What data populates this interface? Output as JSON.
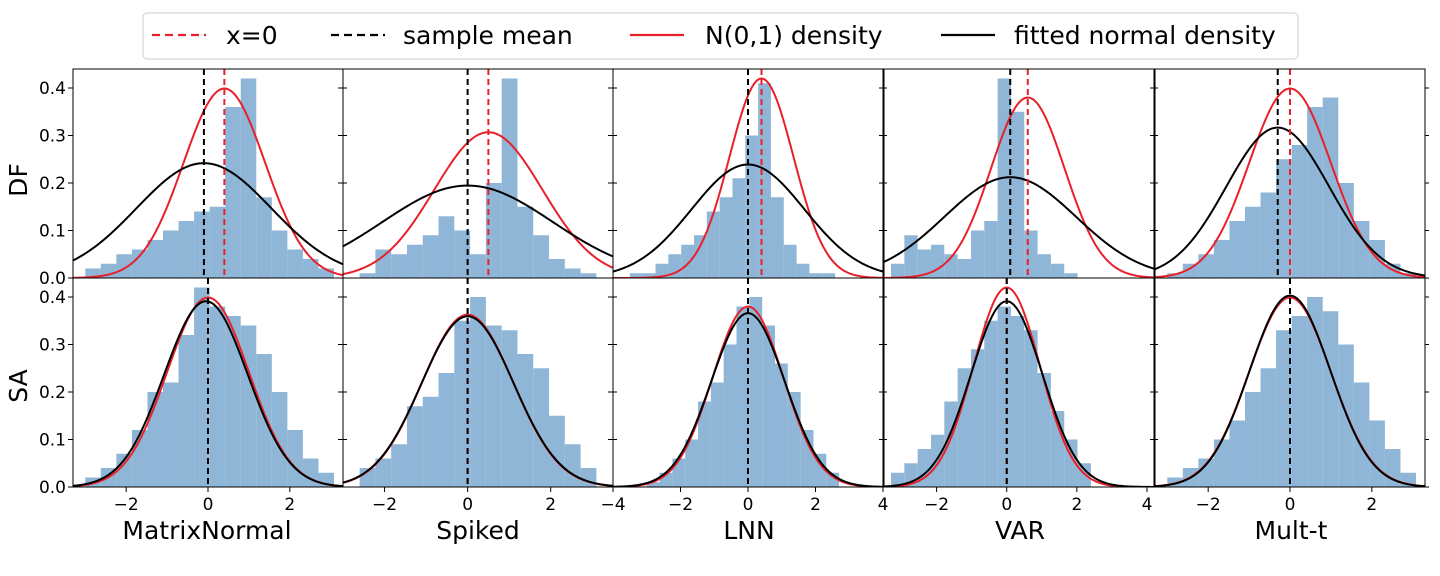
{
  "legend": {
    "entries": [
      {
        "label": "x=0",
        "style": "dashed",
        "color": "#e8202a"
      },
      {
        "label": "sample mean",
        "style": "dashed",
        "color": "#000000"
      },
      {
        "label": "N(0,1) density",
        "style": "solid",
        "color": "#e8202a"
      },
      {
        "label": "fitted normal density",
        "style": "solid",
        "color": "#000000"
      }
    ],
    "placement": "top-center"
  },
  "colors": {
    "hist": "#8fb6d6",
    "red": "#e8202a",
    "black": "#000000"
  },
  "chart_data": {
    "type": "histogram-grid",
    "row_labels": [
      "DF",
      "SA"
    ],
    "col_labels": [
      "MatrixNormal",
      "Spiked",
      "LNN",
      "VAR",
      "Mult-t"
    ],
    "ylim": [
      0,
      0.44
    ],
    "yticks": [
      "0.0",
      "0.1",
      "0.2",
      "0.3",
      "0.4"
    ],
    "ytick_values": [
      0,
      0.1,
      0.2,
      0.3,
      0.4
    ],
    "columns": [
      {
        "xlim": [
          -3.3,
          3.3
        ],
        "xticks": [
          -2,
          0,
          2
        ],
        "xtick_labels": [
          "−2",
          "0",
          "2"
        ]
      },
      {
        "xlim": [
          -3.0,
          3.5
        ],
        "xticks": [
          -2,
          0,
          2
        ],
        "xtick_labels": [
          "−2",
          "0",
          "2"
        ]
      },
      {
        "xlim": [
          -4.0,
          4.0
        ],
        "xticks": [
          -4,
          -2,
          0,
          2,
          4
        ],
        "xtick_labels": [
          "−4",
          "−2",
          "0",
          "2",
          "4"
        ]
      },
      {
        "xlim": [
          -3.5,
          4.2
        ],
        "xticks": [
          -2,
          0,
          2,
          4
        ],
        "xtick_labels": [
          "−2",
          "0",
          "2",
          "4"
        ]
      },
      {
        "xlim": [
          -3.3,
          3.3
        ],
        "xticks": [
          -2,
          0,
          2
        ],
        "xtick_labels": [
          "−2",
          "0",
          "2"
        ]
      }
    ],
    "panels": [
      {
        "row": "DF",
        "col": "MatrixNormal",
        "hist_start": -3.0,
        "bin_width": 0.38,
        "values": [
          0.02,
          0.03,
          0.05,
          0.06,
          0.08,
          0.1,
          0.12,
          0.14,
          0.15,
          0.36,
          0.42,
          0.17,
          0.1,
          0.06,
          0.04,
          0.02
        ],
        "sample_mean": -0.1,
        "ref_center": 0.4,
        "ref_sd": 1.0,
        "fit_mean": -0.1,
        "fit_sd": 1.65
      },
      {
        "row": "DF",
        "col": "Spiked",
        "hist_start": -2.6,
        "bin_width": 0.38,
        "values": [
          0.01,
          0.06,
          0.05,
          0.07,
          0.09,
          0.13,
          0.1,
          0.05,
          0.2,
          0.42,
          0.15,
          0.09,
          0.04,
          0.02,
          0.01
        ],
        "sample_mean": 0.0,
        "ref_center": 0.5,
        "ref_sd": 1.3,
        "fit_mean": 0.0,
        "fit_sd": 2.05
      },
      {
        "row": "DF",
        "col": "LNN",
        "hist_start": -3.5,
        "bin_width": 0.38,
        "values": [
          0.01,
          0.01,
          0.03,
          0.05,
          0.07,
          0.09,
          0.14,
          0.17,
          0.21,
          0.3,
          0.41,
          0.17,
          0.07,
          0.03,
          0.01,
          0.01
        ],
        "sample_mean": 0.0,
        "ref_center": 0.4,
        "ref_sd": 0.95,
        "fit_mean": 0.0,
        "fit_sd": 1.67
      },
      {
        "row": "DF",
        "col": "VAR",
        "hist_start": -3.3,
        "bin_width": 0.38,
        "values": [
          0.03,
          0.09,
          0.06,
          0.07,
          0.05,
          0.04,
          0.1,
          0.12,
          0.42,
          0.35,
          0.1,
          0.05,
          0.03,
          0.01
        ],
        "sample_mean": 0.1,
        "ref_center": 0.6,
        "ref_sd": 1.05,
        "fit_mean": 0.1,
        "fit_sd": 1.88
      },
      {
        "row": "DF",
        "col": "Mult-t",
        "hist_start": -3.0,
        "bin_width": 0.38,
        "values": [
          0.01,
          0.03,
          0.05,
          0.08,
          0.12,
          0.15,
          0.18,
          0.25,
          0.28,
          0.36,
          0.38,
          0.2,
          0.12,
          0.08,
          0.03,
          0.01
        ],
        "sample_mean": -0.3,
        "ref_center": 0.0,
        "ref_sd": 1.0,
        "fit_mean": -0.3,
        "fit_sd": 1.26
      },
      {
        "row": "SA",
        "col": "MatrixNormal",
        "hist_start": -3.0,
        "bin_width": 0.38,
        "values": [
          0.02,
          0.04,
          0.07,
          0.12,
          0.2,
          0.22,
          0.32,
          0.42,
          0.38,
          0.36,
          0.34,
          0.28,
          0.2,
          0.12,
          0.06,
          0.03
        ],
        "sample_mean": 0.0,
        "ref_center": 0.0,
        "ref_sd": 1.0,
        "fit_mean": -0.05,
        "fit_sd": 1.02
      },
      {
        "row": "SA",
        "col": "Spiked",
        "hist_start": -2.6,
        "bin_width": 0.38,
        "values": [
          0.04,
          0.06,
          0.09,
          0.17,
          0.19,
          0.24,
          0.35,
          0.4,
          0.34,
          0.33,
          0.28,
          0.25,
          0.15,
          0.09,
          0.04
        ],
        "sample_mean": 0.0,
        "ref_center": 0.0,
        "ref_sd": 1.1,
        "fit_mean": 0.0,
        "fit_sd": 1.11
      },
      {
        "row": "SA",
        "col": "LNN",
        "hist_start": -3.0,
        "bin_width": 0.38,
        "values": [
          0.01,
          0.03,
          0.06,
          0.1,
          0.18,
          0.22,
          0.3,
          0.38,
          0.4,
          0.34,
          0.26,
          0.2,
          0.12,
          0.07,
          0.03
        ],
        "sample_mean": 0.0,
        "ref_center": 0.0,
        "ref_sd": 1.05,
        "fit_mean": 0.0,
        "fit_sd": 1.09
      },
      {
        "row": "SA",
        "col": "VAR",
        "hist_start": -3.3,
        "bin_width": 0.38,
        "values": [
          0.03,
          0.05,
          0.08,
          0.11,
          0.18,
          0.25,
          0.29,
          0.35,
          0.38,
          0.36,
          0.33,
          0.24,
          0.16,
          0.1,
          0.05
        ],
        "sample_mean": 0.0,
        "ref_center": 0.0,
        "ref_sd": 0.95,
        "fit_mean": 0.0,
        "fit_sd": 1.02
      },
      {
        "row": "SA",
        "col": "Mult-t",
        "hist_start": -3.0,
        "bin_width": 0.38,
        "values": [
          0.02,
          0.04,
          0.06,
          0.1,
          0.14,
          0.2,
          0.25,
          0.33,
          0.36,
          0.4,
          0.37,
          0.3,
          0.22,
          0.14,
          0.08,
          0.03
        ],
        "sample_mean": 0.0,
        "ref_center": 0.0,
        "ref_sd": 1.0,
        "fit_mean": 0.0,
        "fit_sd": 0.99
      }
    ]
  }
}
